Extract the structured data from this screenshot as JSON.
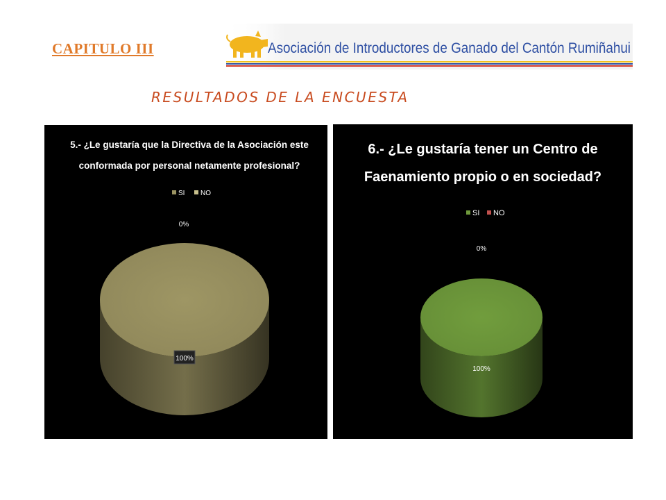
{
  "header": {
    "chapter": "CAPITULO III",
    "logo_text": "Asociación de Introductores de Ganado del Cantón Rumiñahui",
    "logo_icon": "pig-icon",
    "subtitle": "RESULTADOS DE LA ENCUESTA"
  },
  "colors": {
    "chapter": "#e07a2a",
    "subtitle": "#c84a1e",
    "logo_text": "#2e4fa3",
    "logo_pig": "#f2b51e"
  },
  "chart_data": [
    {
      "type": "pie",
      "style": "3d",
      "title_lines": [
        "5.- ¿Le gustaría que la Directiva de la Asociación este",
        "conformada por personal netamente profesional?"
      ],
      "categories": [
        "SI",
        "NO"
      ],
      "values": [
        100,
        0
      ],
      "data_labels": [
        "100%",
        "0%"
      ],
      "colors": [
        "#9b9362",
        "#c7bf8c"
      ],
      "legend": "top"
    },
    {
      "type": "pie",
      "style": "3d",
      "title_lines": [
        "6.- ¿Le gustaría tener un Centro de",
        "Faenamiento propio o en sociedad?"
      ],
      "categories": [
        "SI",
        "NO"
      ],
      "values": [
        100,
        0
      ],
      "data_labels": [
        "100%",
        "0%"
      ],
      "colors": [
        "#6f9a3c",
        "#c0504d"
      ],
      "legend": "top"
    }
  ]
}
